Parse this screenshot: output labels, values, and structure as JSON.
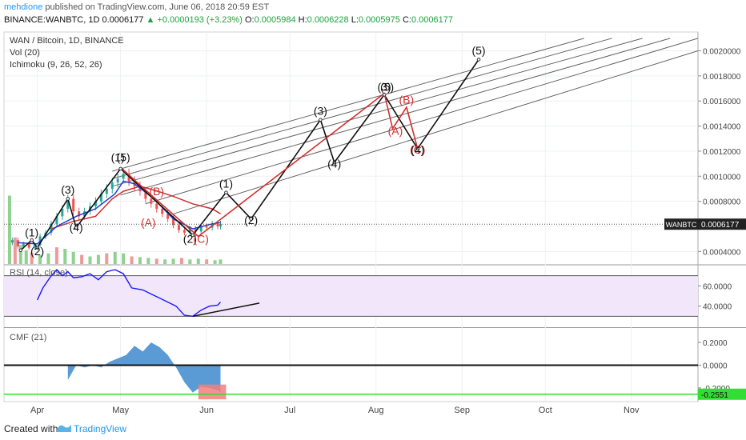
{
  "header": {
    "author": "mehdione",
    "published_text": "published on TradingView.com, June 06, 2018 20:59 EST",
    "symbol": "BINANCE:WANBTC, 1D",
    "last": "0.0006177",
    "change": "▲ +0.0000193 (+3.23%)",
    "o_label": "O:",
    "o": "0.0005984",
    "h_label": "H:",
    "h": "0.0006228",
    "l_label": "L:",
    "l": "0.0005975",
    "c_label": "C:",
    "c": "0.0006177"
  },
  "footer": {
    "created": "Created with",
    "brand": "TradingView"
  },
  "colors": {
    "black_wave": "#111111",
    "red_wave": "#d32f2f",
    "conversion": "#1e3fd6",
    "rsi_line": "#1a1aff",
    "rsi_band": "#f2e6fb",
    "cmf_fill": "#5b9bd5",
    "cmf_neg_highlight": "#f08080",
    "cmf_level": "#33dd33",
    "up": "#26a69a",
    "down": "#ef5350"
  },
  "chart_data": [
    {
      "type": "candlestick",
      "title": "WAN / Bitcoin, 1D, BINANCE",
      "indicators": [
        "Vol (20)",
        "Ichimoku (9, 26, 52, 26)"
      ],
      "ylim": [
        0.0003,
        0.00215
      ],
      "yticks": [
        "0.0020000",
        "0.0018000",
        "0.0016000",
        "0.0014000",
        "0.0012000",
        "0.0010000",
        "0.0008000",
        "0.0006000",
        "0.0004000"
      ],
      "ytick_values": [
        0.002,
        0.0018,
        0.0016,
        0.0014,
        0.0012,
        0.001,
        0.0008,
        0.0006,
        0.0004
      ],
      "xticks": [
        "Apr",
        "May",
        "Jun",
        "Jul",
        "Aug",
        "Sep",
        "Oct",
        "Nov"
      ],
      "xtick_values": [
        "2018-04-01",
        "2018-05-01",
        "2018-06-01",
        "2018-07-01",
        "2018-08-01",
        "2018-09-01",
        "2018-10-01",
        "2018-11-01"
      ],
      "xlim": [
        "2018-03-20",
        "2018-11-25"
      ],
      "price_label": {
        "symbol": "WANBTC",
        "value": "0.0006177",
        "y": 0.0006177
      },
      "close_series": [
        [
          "2018-03-23",
          0.00049
        ],
        [
          "2018-03-25",
          0.00044
        ],
        [
          "2018-03-27",
          0.00046
        ],
        [
          "2018-03-29",
          0.00043
        ],
        [
          "2018-03-31",
          0.00045
        ],
        [
          "2018-04-02",
          0.00052
        ],
        [
          "2018-04-04",
          0.00055
        ],
        [
          "2018-04-06",
          0.00062
        ],
        [
          "2018-04-08",
          0.00068
        ],
        [
          "2018-04-10",
          0.00074
        ],
        [
          "2018-04-12",
          0.00082
        ],
        [
          "2018-04-14",
          0.00072
        ],
        [
          "2018-04-16",
          0.00068
        ],
        [
          "2018-04-18",
          0.00072
        ],
        [
          "2018-04-20",
          0.00076
        ],
        [
          "2018-04-22",
          0.0008
        ],
        [
          "2018-04-24",
          0.00086
        ],
        [
          "2018-04-26",
          0.0009
        ],
        [
          "2018-04-28",
          0.00095
        ],
        [
          "2018-04-30",
          0.00098
        ],
        [
          "2018-05-02",
          0.00102
        ],
        [
          "2018-05-04",
          0.00096
        ],
        [
          "2018-05-06",
          0.00092
        ],
        [
          "2018-05-08",
          0.00088
        ],
        [
          "2018-05-10",
          0.00082
        ],
        [
          "2018-05-12",
          0.00078
        ],
        [
          "2018-05-14",
          0.00074
        ],
        [
          "2018-05-16",
          0.0007
        ],
        [
          "2018-05-18",
          0.00066
        ],
        [
          "2018-05-20",
          0.00061
        ],
        [
          "2018-05-22",
          0.00057
        ],
        [
          "2018-05-24",
          0.00055
        ],
        [
          "2018-05-26",
          0.00058
        ],
        [
          "2018-05-28",
          0.00056
        ],
        [
          "2018-05-30",
          0.0006
        ],
        [
          "2018-06-01",
          0.00059
        ],
        [
          "2018-06-03",
          0.00062
        ],
        [
          "2018-06-05",
          0.0006
        ],
        [
          "2018-06-06",
          0.00062
        ]
      ],
      "ichimoku_conversion": [
        [
          "2018-03-25",
          0.00047
        ],
        [
          "2018-04-01",
          0.00046
        ],
        [
          "2018-04-08",
          0.0006
        ],
        [
          "2018-04-15",
          0.00068
        ],
        [
          "2018-04-22",
          0.00074
        ],
        [
          "2018-04-29",
          0.00086
        ],
        [
          "2018-05-02",
          0.00096
        ],
        [
          "2018-05-06",
          0.00094
        ],
        [
          "2018-05-13",
          0.00082
        ],
        [
          "2018-05-20",
          0.00066
        ],
        [
          "2018-05-27",
          0.00058
        ],
        [
          "2018-06-03",
          0.00062
        ],
        [
          "2018-06-06",
          0.00063
        ]
      ],
      "ichimoku_lagging": [
        [
          "2018-04-06",
          0.00058
        ],
        [
          "2018-04-14",
          0.00064
        ],
        [
          "2018-04-22",
          0.00068
        ],
        [
          "2018-04-28",
          0.00082
        ],
        [
          "2018-05-02",
          0.00088
        ],
        [
          "2018-05-08",
          0.00092
        ],
        [
          "2018-05-13",
          0.00089
        ],
        [
          "2018-05-20",
          0.00084
        ],
        [
          "2018-05-27",
          0.00078
        ],
        [
          "2018-06-03",
          0.00074
        ],
        [
          "2018-06-06",
          0.0007
        ]
      ],
      "wave_black": [
        [
          "2018-03-26",
          0.00041
        ],
        [
          "2018-03-30",
          0.00049
        ],
        [
          "2018-04-01",
          0.00043
        ],
        [
          "2018-04-12",
          0.00082
        ],
        [
          "2018-04-15",
          0.00059
        ],
        [
          "2018-05-01",
          0.00106
        ],
        [
          "2018-05-27",
          0.00053
        ],
        [
          "2018-06-08",
          0.00087
        ],
        [
          "2018-06-17",
          0.00066
        ],
        [
          "2018-07-12",
          0.00145
        ],
        [
          "2018-07-17",
          0.00111
        ],
        [
          "2018-08-04",
          0.00165
        ],
        [
          "2018-08-16",
          0.00122
        ],
        [
          "2018-09-07",
          0.00193
        ]
      ],
      "wave_red": [
        [
          "2018-05-01",
          0.00107
        ],
        [
          "2018-05-13",
          0.00083
        ],
        [
          "2018-05-29",
          0.00052
        ],
        [
          "2018-08-04",
          0.00166
        ],
        [
          "2018-08-07",
          0.00138
        ],
        [
          "2018-08-12",
          0.00155
        ],
        [
          "2018-08-16",
          0.00122
        ]
      ],
      "channel_lines": [
        [
          [
            "2018-04-28",
            0.00104
          ],
          [
            "2018-10-15",
            0.0021
          ]
        ],
        [
          [
            "2018-04-28",
            0.00098
          ],
          [
            "2018-10-25",
            0.0021
          ]
        ],
        [
          [
            "2018-04-28",
            0.00092
          ],
          [
            "2018-11-05",
            0.0021
          ]
        ],
        [
          [
            "2018-05-01",
            0.00085
          ],
          [
            "2018-11-15",
            0.0021
          ]
        ],
        [
          [
            "2018-05-10",
            0.00078
          ],
          [
            "2018-11-25",
            0.0021
          ]
        ],
        [
          [
            "2018-05-20",
            0.0007
          ],
          [
            "2018-11-25",
            0.002
          ]
        ]
      ],
      "wave_labels": [
        {
          "text": "(1)",
          "x": "2018-03-30",
          "y": 0.00052,
          "color": "black"
        },
        {
          "text": "(2)",
          "x": "2018-04-01",
          "y": 0.00037,
          "color": "black"
        },
        {
          "text": "(3)",
          "x": "2018-04-12",
          "y": 0.00086,
          "color": "black"
        },
        {
          "text": "(4)",
          "x": "2018-04-15",
          "y": 0.00056,
          "color": "black"
        },
        {
          "text": "(1)",
          "x": "2018-04-30",
          "y": 0.00112,
          "color": "black"
        },
        {
          "text": "(5)",
          "x": "2018-05-02",
          "y": 0.00112,
          "color": "black"
        },
        {
          "text": "(B)",
          "x": "2018-05-14",
          "y": 0.00085,
          "color": "red"
        },
        {
          "text": "(A)",
          "x": "2018-05-11",
          "y": 0.0006,
          "color": "red"
        },
        {
          "text": "(2)",
          "x": "2018-05-26",
          "y": 0.00047,
          "color": "black"
        },
        {
          "text": "(C)",
          "x": "2018-05-30",
          "y": 0.00047,
          "color": "red"
        },
        {
          "text": "(1)",
          "x": "2018-06-08",
          "y": 0.00091,
          "color": "black"
        },
        {
          "text": "(2)",
          "x": "2018-06-17",
          "y": 0.00062,
          "color": "black"
        },
        {
          "text": "(3)",
          "x": "2018-07-12",
          "y": 0.00149,
          "color": "black"
        },
        {
          "text": "(4)",
          "x": "2018-07-17",
          "y": 0.00107,
          "color": "black"
        },
        {
          "text": "(3)",
          "x": "2018-08-04",
          "y": 0.00168,
          "color": "black"
        },
        {
          "text": "(5)",
          "x": "2018-08-05",
          "y": 0.00168,
          "color": "black"
        },
        {
          "text": "(B)",
          "x": "2018-08-12",
          "y": 0.00158,
          "color": "red"
        },
        {
          "text": "(A)",
          "x": "2018-08-08",
          "y": 0.00133,
          "color": "red"
        },
        {
          "text": "(C)",
          "x": "2018-08-16",
          "y": 0.00118,
          "color": "red"
        },
        {
          "text": "(4)",
          "x": "2018-08-16",
          "y": 0.00118,
          "color": "black"
        },
        {
          "text": "(5)",
          "x": "2018-09-07",
          "y": 0.00197,
          "color": "black"
        }
      ],
      "volume_series": [
        [
          "2018-03-22",
          0.9
        ],
        [
          "2018-03-24",
          0.35
        ],
        [
          "2018-03-26",
          0.25
        ],
        [
          "2018-03-28",
          0.18
        ],
        [
          "2018-03-30",
          0.15
        ],
        [
          "2018-04-02",
          0.12
        ],
        [
          "2018-04-05",
          0.14
        ],
        [
          "2018-04-08",
          0.22
        ],
        [
          "2018-04-11",
          0.2
        ],
        [
          "2018-04-14",
          0.16
        ],
        [
          "2018-04-17",
          0.12
        ],
        [
          "2018-04-20",
          0.1
        ],
        [
          "2018-04-23",
          0.12
        ],
        [
          "2018-04-26",
          0.14
        ],
        [
          "2018-04-29",
          0.16
        ],
        [
          "2018-05-02",
          0.14
        ],
        [
          "2018-05-05",
          0.1
        ],
        [
          "2018-05-08",
          0.09
        ],
        [
          "2018-05-11",
          0.08
        ],
        [
          "2018-05-14",
          0.07
        ],
        [
          "2018-05-17",
          0.06
        ],
        [
          "2018-05-20",
          0.07
        ],
        [
          "2018-05-23",
          0.08
        ],
        [
          "2018-05-26",
          0.06
        ],
        [
          "2018-05-29",
          0.07
        ],
        [
          "2018-06-01",
          0.06
        ],
        [
          "2018-06-04",
          0.05
        ],
        [
          "2018-06-06",
          0.06
        ]
      ]
    },
    {
      "type": "line",
      "title": "RSI (14, close)",
      "ylim": [
        20,
        80
      ],
      "yticks": [
        "60.0000",
        "40.0000"
      ],
      "ytick_values": [
        60,
        40
      ],
      "band": [
        30,
        70
      ],
      "series": [
        {
          "values": [
            [
              "2018-04-01",
              46
            ],
            [
              "2018-04-03",
              58
            ],
            [
              "2018-04-06",
              70
            ],
            [
              "2018-04-08",
              76
            ],
            [
              "2018-04-10",
              70
            ],
            [
              "2018-04-12",
              74
            ],
            [
              "2018-04-14",
              68
            ],
            [
              "2018-04-17",
              69
            ],
            [
              "2018-04-20",
              72
            ],
            [
              "2018-04-23",
              66
            ],
            [
              "2018-04-26",
              74
            ],
            [
              "2018-04-29",
              76
            ],
            [
              "2018-05-02",
              72
            ],
            [
              "2018-05-05",
              58
            ],
            [
              "2018-05-09",
              56
            ],
            [
              "2018-05-12",
              52
            ],
            [
              "2018-05-15",
              48
            ],
            [
              "2018-05-18",
              44
            ],
            [
              "2018-05-21",
              40
            ],
            [
              "2018-05-24",
              31
            ],
            [
              "2018-05-27",
              30
            ],
            [
              "2018-05-30",
              36
            ],
            [
              "2018-06-02",
              40
            ],
            [
              "2018-06-05",
              41
            ],
            [
              "2018-06-06",
              44
            ]
          ]
        }
      ],
      "trendline": [
        [
          "2018-05-27",
          30
        ],
        [
          "2018-06-20",
          43
        ]
      ]
    },
    {
      "type": "area",
      "title": "CMF (21)",
      "ylim": [
        -0.32,
        0.32
      ],
      "yticks": [
        "0.2000",
        "0.0000",
        "-0.2000"
      ],
      "ytick_values": [
        0.2,
        0.0,
        -0.2
      ],
      "level_label": {
        "value": "-0.2551",
        "y": -0.2551
      },
      "series": [
        {
          "values": [
            [
              "2018-04-12",
              -0.13
            ],
            [
              "2018-04-15",
              0.0
            ],
            [
              "2018-04-18",
              -0.02
            ],
            [
              "2018-04-21",
              0.0
            ],
            [
              "2018-04-24",
              -0.02
            ],
            [
              "2018-04-27",
              0.03
            ],
            [
              "2018-04-30",
              0.06
            ],
            [
              "2018-05-03",
              0.09
            ],
            [
              "2018-05-06",
              0.17
            ],
            [
              "2018-05-09",
              0.12
            ],
            [
              "2018-05-12",
              0.2
            ],
            [
              "2018-05-15",
              0.16
            ],
            [
              "2018-05-18",
              0.09
            ],
            [
              "2018-05-21",
              -0.02
            ],
            [
              "2018-05-24",
              -0.15
            ],
            [
              "2018-05-27",
              -0.24
            ],
            [
              "2018-05-30",
              -0.19
            ],
            [
              "2018-06-02",
              -0.2
            ],
            [
              "2018-06-05",
              -0.22
            ],
            [
              "2018-06-06",
              -0.24
            ]
          ]
        }
      ]
    }
  ]
}
